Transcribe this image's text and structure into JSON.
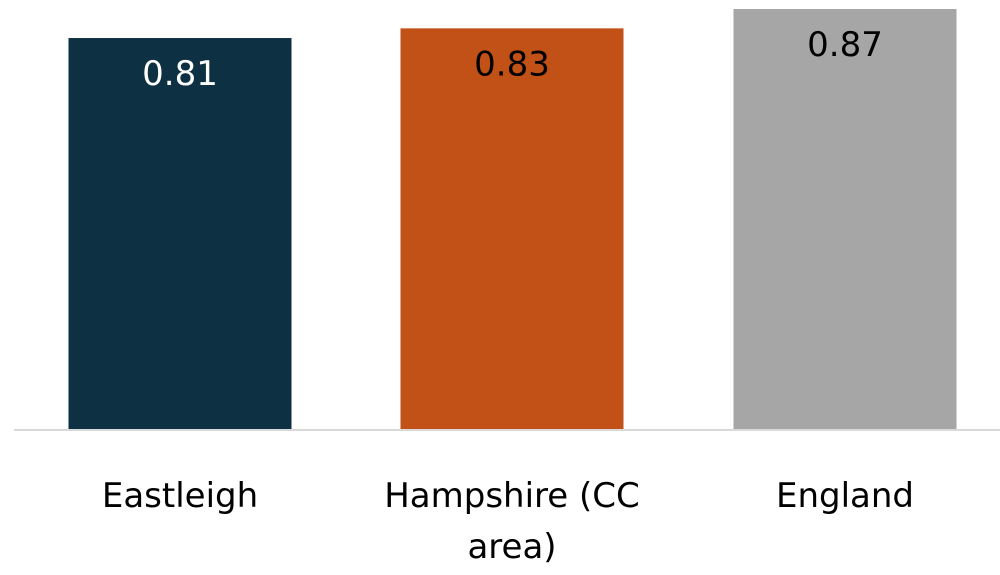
{
  "chart_data": {
    "type": "bar",
    "categories": [
      "Eastleigh",
      "Hampshire (CC area)",
      "England"
    ],
    "values": [
      0.81,
      0.83,
      0.87
    ],
    "value_labels": [
      "0.81",
      "0.83",
      "0.87"
    ],
    "category_label_lines": [
      [
        "Eastleigh"
      ],
      [
        "Hampshire (CC",
        "area)"
      ],
      [
        "England"
      ]
    ],
    "bar_colors": [
      "#0d3042",
      "#c15116",
      "#a6a6a6"
    ],
    "value_label_colors": [
      "#ffffff",
      "#000000",
      "#000000"
    ],
    "axis_color": "#d9d9d9",
    "ylim": [
      0,
      0.87
    ],
    "title": "",
    "xlabel": "",
    "ylabel": "",
    "grid": false,
    "legend": "none"
  }
}
